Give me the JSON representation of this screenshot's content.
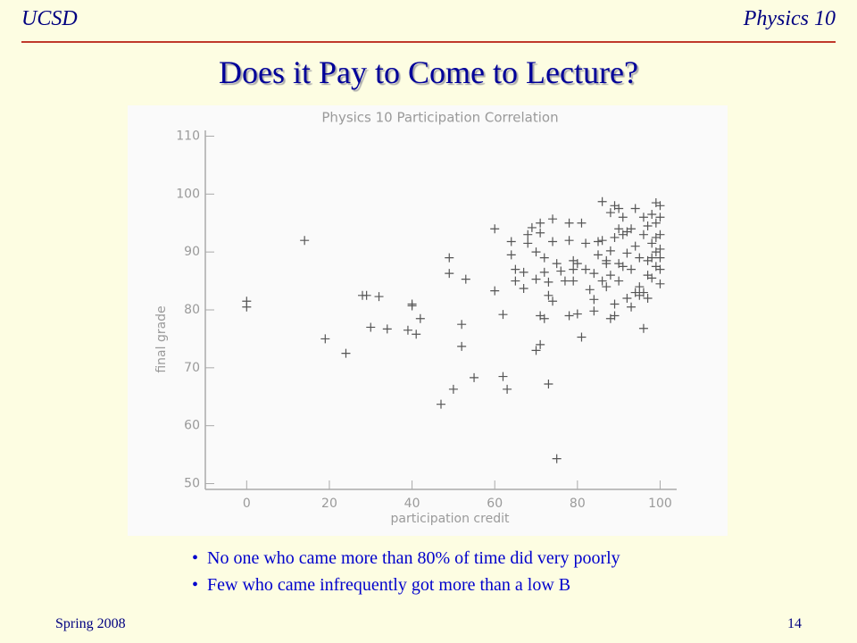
{
  "header": {
    "left": "UCSD",
    "right": "Physics 10"
  },
  "title": "Does it Pay to Come to Lecture?",
  "chart_data": {
    "type": "scatter",
    "title": "Physics 10 Participation Correlation",
    "x_label": "participation credit",
    "y_label": "final grade",
    "xlim": [
      -10,
      104
    ],
    "ylim": [
      49,
      111
    ],
    "xticks": [
      0,
      20,
      40,
      60,
      80,
      100
    ],
    "yticks": [
      50,
      60,
      70,
      80,
      90,
      100,
      110
    ],
    "color": "#555555",
    "x": [
      0,
      0,
      14,
      19,
      24,
      28,
      29,
      30,
      32,
      34,
      39,
      40,
      40,
      41,
      42,
      47,
      49,
      49,
      50,
      52,
      52,
      53,
      55,
      60,
      60,
      62,
      62,
      63,
      64,
      64,
      65,
      65,
      67,
      67,
      68,
      68,
      69,
      70,
      70,
      70,
      71,
      71,
      71,
      71,
      72,
      72,
      72,
      73,
      73,
      73,
      74,
      74,
      74,
      75,
      75,
      76,
      77,
      78,
      78,
      78,
      79,
      79,
      79,
      80,
      80,
      81,
      81,
      82,
      82,
      83,
      84,
      84,
      84,
      85,
      85,
      86,
      86,
      86,
      87,
      87,
      87,
      88,
      88,
      88,
      88,
      89,
      89,
      89,
      89,
      90,
      90,
      90,
      90,
      91,
      91,
      91,
      92,
      92,
      92,
      93,
      93,
      93,
      94,
      94,
      94,
      95,
      95,
      95,
      96,
      96,
      96,
      96,
      97,
      97,
      97,
      97,
      98,
      98,
      98,
      98,
      99,
      99,
      99,
      99,
      99,
      100,
      100,
      100,
      100,
      100,
      100,
      100
    ],
    "y": [
      81.5,
      80.5,
      92,
      75,
      72.5,
      82.5,
      82.5,
      77,
      82.3,
      76.7,
      76.5,
      81,
      80.7,
      75.8,
      78.5,
      63.7,
      89,
      86.3,
      66.3,
      77.5,
      73.7,
      85.3,
      68.3,
      94,
      83.3,
      79.2,
      68.5,
      66.3,
      91.8,
      89.5,
      87,
      85,
      86.5,
      83.7,
      91.5,
      93,
      94.2,
      73,
      85.3,
      90,
      74,
      95,
      93.3,
      79,
      78.5,
      89,
      86.5,
      67.2,
      84.8,
      82.5,
      81.5,
      95.7,
      91.8,
      88,
      54.3,
      86.7,
      85,
      95,
      79,
      92,
      88.5,
      87,
      85,
      88,
      79.3,
      75.3,
      95,
      87,
      91.5,
      83.5,
      86.3,
      81.8,
      79.8,
      91.8,
      89.5,
      92,
      98.7,
      85,
      88,
      88.5,
      84,
      78.5,
      96.8,
      90.2,
      86,
      98,
      92.5,
      81,
      79,
      94,
      97.5,
      88,
      85,
      93,
      96,
      87.5,
      93.5,
      89.8,
      82,
      94,
      87,
      80.5,
      83,
      97.5,
      91,
      89,
      84,
      82.5,
      96,
      93,
      76.8,
      83,
      94.5,
      88.5,
      86,
      82,
      96.5,
      91.5,
      89,
      85.5,
      98.5,
      95,
      92.5,
      90,
      87.5,
      98,
      96,
      93,
      89,
      87,
      84.5,
      90.5
    ]
  },
  "bullets": [
    "No one who came more than 80% of time did very poorly",
    "Few who came infrequently got more than a low B"
  ],
  "footer": {
    "left": "Spring 2008",
    "right": "14"
  }
}
